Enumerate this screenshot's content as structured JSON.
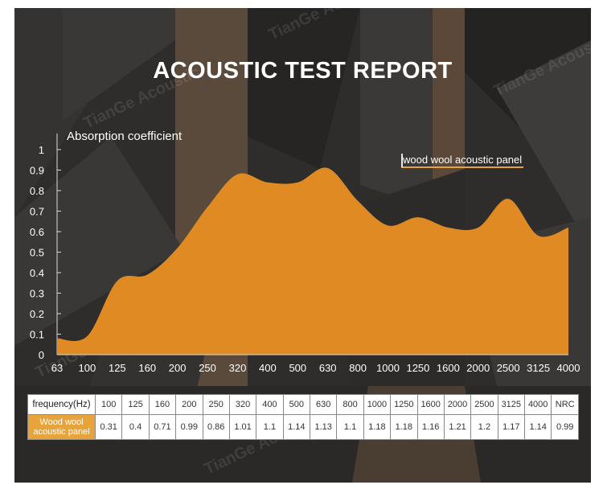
{
  "title": "ACOUSTIC TEST REPORT",
  "watermark": "TianGe Acoustic",
  "colors": {
    "fill": "#e08a24",
    "accent": "#e8a33a",
    "background": "#2b2a28",
    "text": "#ffffff"
  },
  "chart_data": {
    "type": "area",
    "title": "ACOUSTIC TEST REPORT",
    "ylabel": "Absorption coefficient",
    "xlabel": "",
    "x": [
      "63",
      "100",
      "125",
      "160",
      "200",
      "250",
      "320",
      "400",
      "500",
      "630",
      "800",
      "1000",
      "1250",
      "1600",
      "2000",
      "2500",
      "3125",
      "4000"
    ],
    "yticks": [
      "0",
      "0.1",
      "0.2",
      "0.3",
      "0.4",
      "0.5",
      "0.6",
      "0.7",
      "0.8",
      "0.9",
      "1"
    ],
    "ylim": [
      0,
      1
    ],
    "series": [
      {
        "name": "wood wool acoustic panel",
        "values": [
          0.08,
          0.09,
          0.36,
          0.39,
          0.52,
          0.72,
          0.88,
          0.84,
          0.84,
          0.91,
          0.75,
          0.63,
          0.67,
          0.62,
          0.62,
          0.76,
          0.58,
          0.62
        ]
      }
    ],
    "legend": "top-right",
    "grid": false
  },
  "table": {
    "header_label": "frequency",
    "header_unit": "(Hz)",
    "columns": [
      "100",
      "125",
      "160",
      "200",
      "250",
      "320",
      "400",
      "500",
      "630",
      "800",
      "1000",
      "1250",
      "1600",
      "2000",
      "2500",
      "3125",
      "4000",
      "NRC"
    ],
    "row_label": "Wood wool acoustic panel",
    "values": [
      "0.31",
      "0.4",
      "0.71",
      "0.99",
      "0.86",
      "1.01",
      "1.1",
      "1.14",
      "1.13",
      "1.1",
      "1.18",
      "1.18",
      "1.16",
      "1.21",
      "1.2",
      "1.17",
      "1.14",
      "0.99"
    ]
  }
}
